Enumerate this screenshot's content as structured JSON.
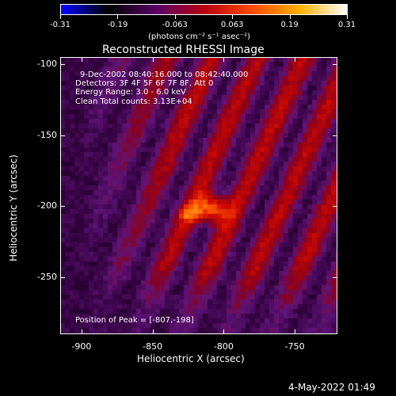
{
  "colorbar": {
    "tick_labels": [
      "-0.31",
      "-0.19",
      "-0.063",
      "0.063",
      "0.19",
      "0.31"
    ],
    "units": "(photons cm⁻² s⁻¹ asec⁻²)",
    "min": -0.31,
    "max": 0.31,
    "colors": [
      "#0000ff",
      "#000000",
      "#5a0066",
      "#b80010",
      "#ff4a00",
      "#ffb000",
      "#ffffff"
    ]
  },
  "title": "Reconstructed RHESSI Image",
  "info_lines": [
    "9-Dec-2002 08:40:16.000 to 08:42:40.000",
    "Detectors: 3F 4F 5F 6F 7F 8F, Att 0",
    "Energy Range: 3.0 - 6.0 keV",
    "Clean     Total counts: 3.13E+04"
  ],
  "peak_label": "Position of Peak = [-807,-198]",
  "axes": {
    "xlabel": "Heliocentric X (arcsec)",
    "ylabel": "Heliocentric Y (arcsec)",
    "x_ticks": [
      "-900",
      "-850",
      "-800",
      "-750"
    ],
    "y_ticks": [
      "-100",
      "-150",
      "-200",
      "-250"
    ],
    "x_tick_values": [
      -900,
      -850,
      -800,
      -750
    ],
    "y_tick_values": [
      -100,
      -150,
      -200,
      -250
    ],
    "xlim": [
      -915,
      -720
    ],
    "ylim": [
      -290,
      -95
    ]
  },
  "footer_date": "4-May-2022 01:49"
}
